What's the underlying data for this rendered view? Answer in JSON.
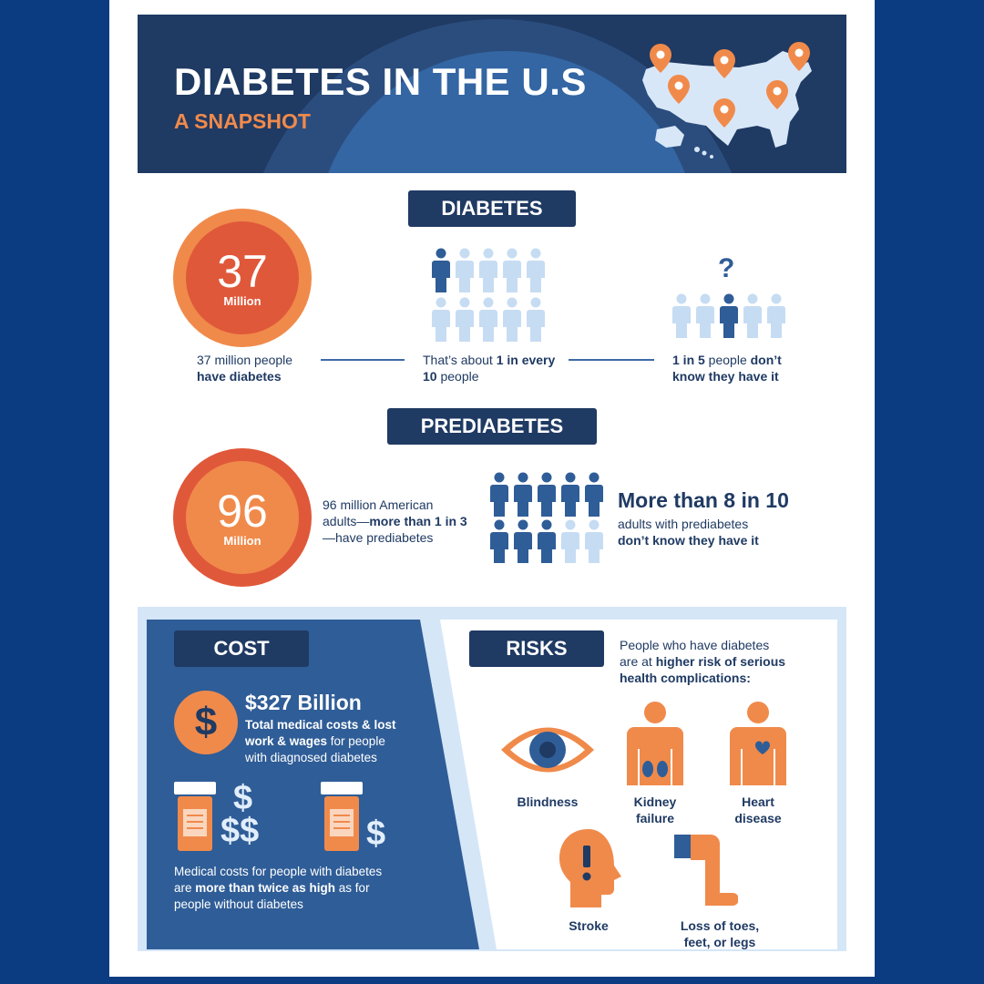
{
  "header": {
    "title": "DIABETES IN THE U.S",
    "subtitle": "A SNAPSHOT"
  },
  "diabetes": {
    "label": "DIABETES",
    "number": "37",
    "number_unit": "Million",
    "stat1_line1": "37 million people",
    "stat1_bold": "have diabetes",
    "stat2_pre": "That’s about ",
    "stat2_bold1": "1 in every",
    "stat2_bold2": "10",
    "stat2_post": " people",
    "stat3_bold1": "1 in 5",
    "stat3_mid": " people ",
    "stat3_bold2": "don’t",
    "stat3_line2": "know they have it",
    "question_mark": "?"
  },
  "prediabetes": {
    "label": "PREDIABETES",
    "number": "96",
    "number_unit": "Million",
    "desc_line1": "96 million American",
    "desc_pre": "adults—",
    "desc_bold": "more than 1 in 3",
    "desc_line3": "—have prediabetes",
    "headline": "More than 8 in 10",
    "sub_line1": "adults with prediabetes",
    "sub_bold": "don’t know they have it"
  },
  "cost": {
    "label": "COST",
    "amount": "$327 Billion",
    "desc_bold1": "Total medical costs & lost",
    "desc_bold2": "work & wages",
    "desc_post": " for people",
    "desc_line3": "with diagnosed diabetes",
    "foot_line1": "Medical costs for people with diabetes",
    "foot_pre": "are ",
    "foot_bold": "more than twice as high",
    "foot_post": " as for",
    "foot_line3": "people without diabetes"
  },
  "risks": {
    "label": "RISKS",
    "intro_line1": "People who have diabetes",
    "intro_pre": "are at ",
    "intro_bold": "higher risk of serious",
    "intro_bold2": "health complications:",
    "items": {
      "blindness": "Blindness",
      "kidney1": "Kidney",
      "kidney2": "failure",
      "heart1": "Heart",
      "heart2": "disease",
      "stroke": "Stroke",
      "loss1": "Loss of toes,",
      "loss2": "feet, or legs"
    }
  },
  "colors": {
    "navy": "#1f3a63",
    "orange": "#f08a4b",
    "dark_orange": "#e0583a",
    "light_blue": "#c6dcf3",
    "mid_blue": "#2f5d97",
    "background": "#0b3b80"
  },
  "icons": [
    "map-pin-icon",
    "person-icon",
    "dollar-icon",
    "pill-bottle-icon",
    "eye-icon",
    "kidney-icon",
    "heart-icon",
    "head-icon",
    "leg-icon"
  ]
}
